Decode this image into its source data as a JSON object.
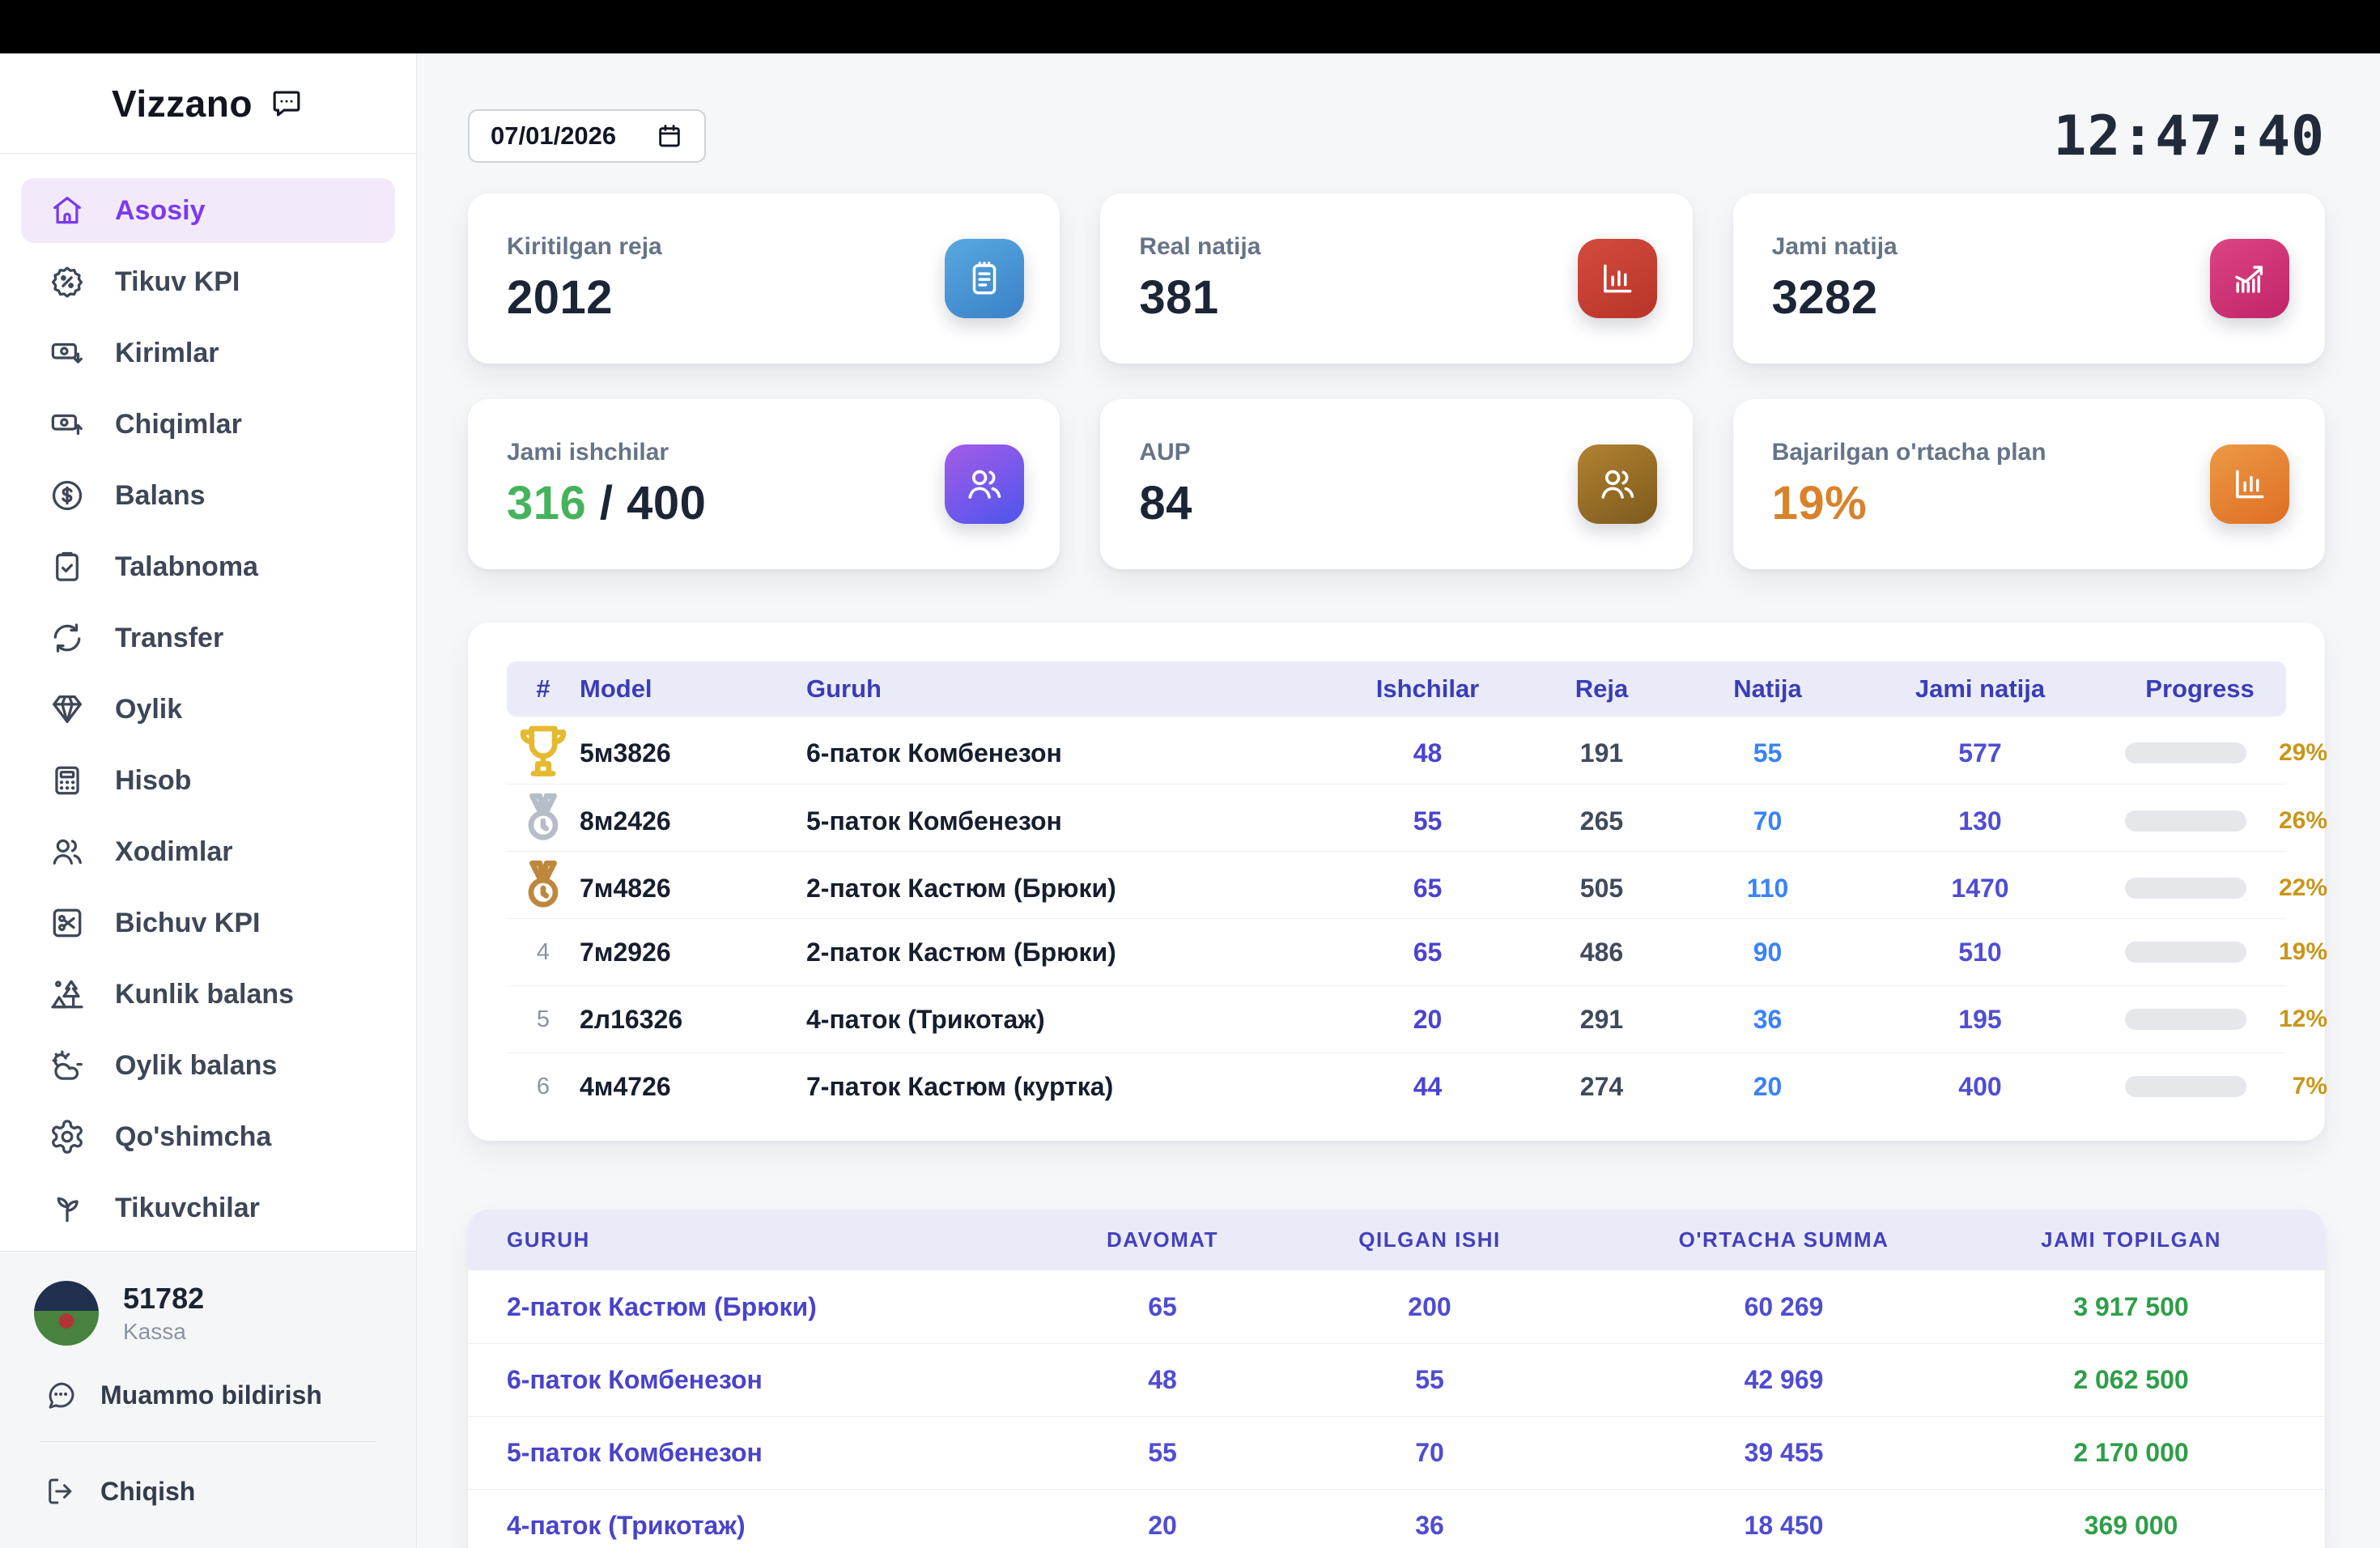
{
  "sidebar": {
    "logo": "Vizzano",
    "items": [
      {
        "label": "Asosiy",
        "icon": "home",
        "active": true
      },
      {
        "label": "Tikuv KPI",
        "icon": "badge-percent",
        "active": false
      },
      {
        "label": "Kirimlar",
        "icon": "cash-in",
        "active": false
      },
      {
        "label": "Chiqimlar",
        "icon": "cash-out",
        "active": false
      },
      {
        "label": "Balans",
        "icon": "dollar-circle",
        "active": false
      },
      {
        "label": "Talabnoma",
        "icon": "clipboard-check",
        "active": false
      },
      {
        "label": "Transfer",
        "icon": "transfer",
        "active": false
      },
      {
        "label": "Oylik",
        "icon": "gem",
        "active": false
      },
      {
        "label": "Hisob",
        "icon": "calculator",
        "active": false
      },
      {
        "label": "Xodimlar",
        "icon": "users",
        "active": false
      },
      {
        "label": "Bichuv KPI",
        "icon": "scissors",
        "active": false
      },
      {
        "label": "Kunlik balans",
        "icon": "tree",
        "active": false
      },
      {
        "label": "Oylik balans",
        "icon": "cloud-sun",
        "active": false
      },
      {
        "label": "Qo'shimcha",
        "icon": "gear",
        "active": false
      },
      {
        "label": "Tikuvchilar",
        "icon": "sprout",
        "active": false
      }
    ],
    "user": {
      "id": "51782",
      "role": "Kassa"
    },
    "report_label": "Muammo bildirish",
    "logout_label": "Chiqish"
  },
  "header": {
    "date_value": "07/01/2026",
    "clock": "12:47:40"
  },
  "stat_cards": [
    {
      "label": "Kiritilgan reja",
      "value": "2012",
      "suffix": "",
      "value_color": "dark",
      "icon": "notepad",
      "theme": "blue"
    },
    {
      "label": "Real natija",
      "value": "381",
      "suffix": "",
      "value_color": "dark",
      "icon": "bar-chart",
      "theme": "red"
    },
    {
      "label": "Jami natija",
      "value": "3282",
      "suffix": "",
      "value_color": "dark",
      "icon": "trend-up",
      "theme": "pink"
    },
    {
      "label": "Jami ishchilar",
      "value": "316",
      "suffix": " / 400",
      "value_color": "green",
      "icon": "users",
      "theme": "purple"
    },
    {
      "label": "AUP",
      "value": "84",
      "suffix": "",
      "value_color": "dark",
      "icon": "users",
      "theme": "brown"
    },
    {
      "label": "Bajarilgan o'rtacha plan",
      "value": "19%",
      "suffix": "",
      "value_color": "orange",
      "icon": "bar-chart",
      "theme": "orange"
    }
  ],
  "production_table": {
    "columns": [
      "#",
      "Model",
      "Guruh",
      "Ishchilar",
      "Reja",
      "Natija",
      "Jami natija",
      "Progress"
    ],
    "rows": [
      {
        "rank": 1,
        "rank_icon": "trophy",
        "model": "5м3826",
        "guruh": "6-паток Комбенезон",
        "ishchilar": 48,
        "reja": 191,
        "natija": 55,
        "jami_natija": 577,
        "progress_pct": 29
      },
      {
        "rank": 2,
        "rank_icon": "medal-silver",
        "model": "8м2426",
        "guruh": "5-паток Комбенезон",
        "ishchilar": 55,
        "reja": 265,
        "natija": 70,
        "jami_natija": 130,
        "progress_pct": 26
      },
      {
        "rank": 3,
        "rank_icon": "medal-bronze",
        "model": "7м4826",
        "guruh": "2-паток Кастюм (Брюки)",
        "ishchilar": 65,
        "reja": 505,
        "natija": 110,
        "jami_natija": 1470,
        "progress_pct": 22
      },
      {
        "rank": 4,
        "rank_icon": null,
        "model": "7м2926",
        "guruh": "2-паток Кастюм (Брюки)",
        "ishchilar": 65,
        "reja": 486,
        "natija": 90,
        "jami_natija": 510,
        "progress_pct": 19
      },
      {
        "rank": 5,
        "rank_icon": null,
        "model": "2л16326",
        "guruh": "4-паток (Трикотаж)",
        "ishchilar": 20,
        "reja": 291,
        "natija": 36,
        "jami_natija": 195,
        "progress_pct": 12
      },
      {
        "rank": 6,
        "rank_icon": null,
        "model": "4м4726",
        "guruh": "7-паток Кастюм (куртка)",
        "ishchilar": 44,
        "reja": 274,
        "natija": 20,
        "jami_natija": 400,
        "progress_pct": 7
      }
    ]
  },
  "group_table": {
    "columns": [
      "GURUH",
      "DAVOMAT",
      "QILGAN ISHI",
      "O'RTACHA SUMMA",
      "JAMI TOPILGAN"
    ],
    "rows": [
      {
        "guruh": "2-паток Кастюм (Брюки)",
        "davomat": 65,
        "qilgan_ishi": 200,
        "ortacha_summa": "60 269",
        "jami_topilgan": "3 917 500"
      },
      {
        "guruh": "6-паток Комбенезон",
        "davomat": 48,
        "qilgan_ishi": 55,
        "ortacha_summa": "42 969",
        "jami_topilgan": "2 062 500"
      },
      {
        "guruh": "5-паток Комбенезон",
        "davomat": 55,
        "qilgan_ishi": 70,
        "ortacha_summa": "39 455",
        "jami_topilgan": "2 170 000"
      },
      {
        "guruh": "4-паток (Трикотаж)",
        "davomat": 20,
        "qilgan_ishi": 36,
        "ortacha_summa": "18 450",
        "jami_topilgan": "369 000"
      }
    ]
  },
  "colors": {
    "accent_purple": "#7c3aed",
    "header_band": "#e9ecf8",
    "header_text": "#3c3cb7",
    "natija_blue": "#3b82f6",
    "indigo_value": "#4f4ed2",
    "green_value": "#2f9e49",
    "green_stat": "#45b35c",
    "orange_stat": "#d9822b",
    "progress_gold": "#e2b23c"
  }
}
